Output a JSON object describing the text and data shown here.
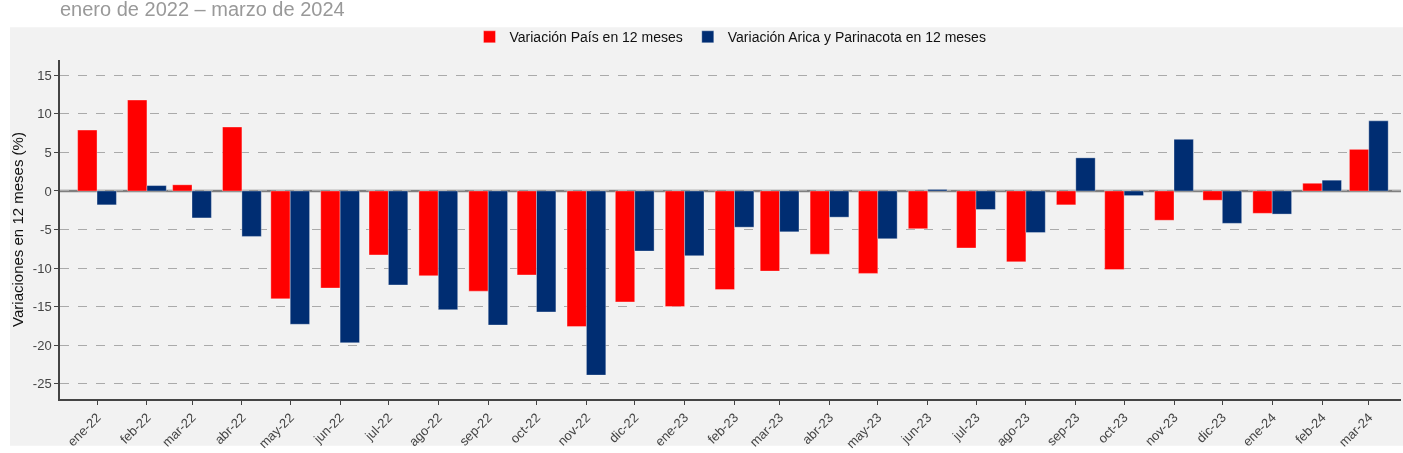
{
  "chart_data": {
    "type": "bar",
    "subtitle": "enero de 2022 – marzo de 2024",
    "ylabel": "Variaciones en 12 meses (%)",
    "x": [
      "2022-01",
      "2022-02",
      "2022-03",
      "2022-04",
      "2022-05",
      "2022-06",
      "2022-07",
      "2022-08",
      "2022-09",
      "2022-10",
      "2022-11",
      "2022-12",
      "2023-01",
      "2023-02",
      "2023-03",
      "2023-04",
      "2023-05",
      "2023-06",
      "2023-07",
      "2023-08",
      "2023-09",
      "2023-10",
      "2023-11",
      "2023-12",
      "2024-01",
      "2024-02",
      "2024-03"
    ],
    "series": [
      {
        "name": "Variación País en 12 meses",
        "color": "#ff0000",
        "values": [
          7.9,
          11.8,
          0.8,
          8.3,
          -14.0,
          -12.6,
          -8.3,
          -11.0,
          -13.0,
          -10.9,
          -17.6,
          -14.4,
          -15.0,
          -12.8,
          -10.4,
          -8.2,
          -10.7,
          -4.9,
          -7.4,
          -9.2,
          -1.8,
          -10.2,
          -3.8,
          -1.2,
          -2.9,
          1.0,
          5.4
        ]
      },
      {
        "name": "Variación Arica y Parinacota en 12 meses",
        "color": "#002d72",
        "values": [
          -1.8,
          0.7,
          -3.5,
          -5.9,
          -17.3,
          -19.7,
          -12.2,
          -15.4,
          -17.4,
          -15.7,
          -23.9,
          -7.8,
          -8.4,
          -4.7,
          -5.3,
          -3.4,
          -6.2,
          0.2,
          -2.4,
          -5.4,
          4.3,
          -0.6,
          6.7,
          -4.2,
          -3.0,
          1.4,
          9.1
        ]
      }
    ],
    "xlim": [
      "2021-12-09",
      "2024-03-21"
    ],
    "xticks": [
      {
        "value": "2022-01",
        "label": "ene-22"
      },
      {
        "value": "2022-02",
        "label": "feb-22"
      },
      {
        "value": "2022-03",
        "label": "mar-22"
      },
      {
        "value": "2022-04",
        "label": "abr-22"
      },
      {
        "value": "2022-05",
        "label": "may-22"
      },
      {
        "value": "2022-06",
        "label": "jun-22"
      },
      {
        "value": "2022-07",
        "label": "jul-22"
      },
      {
        "value": "2022-08",
        "label": "ago-22"
      },
      {
        "value": "2022-09",
        "label": "sep-22"
      },
      {
        "value": "2022-10",
        "label": "oct-22"
      },
      {
        "value": "2022-11",
        "label": "nov-22"
      },
      {
        "value": "2022-12",
        "label": "dic-22"
      },
      {
        "value": "2023-01",
        "label": "ene-23"
      },
      {
        "value": "2023-02",
        "label": "feb-23"
      },
      {
        "value": "2023-03",
        "label": "mar-23"
      },
      {
        "value": "2023-04",
        "label": "abr-23"
      },
      {
        "value": "2023-05",
        "label": "may-23"
      },
      {
        "value": "2023-06",
        "label": "jun-23"
      },
      {
        "value": "2023-07",
        "label": "jul-23"
      },
      {
        "value": "2023-08",
        "label": "ago-23"
      },
      {
        "value": "2023-09",
        "label": "sep-23"
      },
      {
        "value": "2023-10",
        "label": "oct-23"
      },
      {
        "value": "2023-11",
        "label": "nov-23"
      },
      {
        "value": "2023-12",
        "label": "dic-23"
      },
      {
        "value": "2024-01",
        "label": "ene-24"
      },
      {
        "value": "2024-02",
        "label": "feb-24"
      },
      {
        "value": "2024-03",
        "label": "mar-24"
      }
    ],
    "ylim": [
      -27,
      17
    ],
    "yticks": [
      -25,
      -20,
      -15,
      -10,
      -5,
      0,
      5,
      10,
      15
    ],
    "grid": "y",
    "legend": "top",
    "ref_lines": [
      {
        "axis": "y",
        "value": 0,
        "color": "#808080"
      }
    ]
  }
}
